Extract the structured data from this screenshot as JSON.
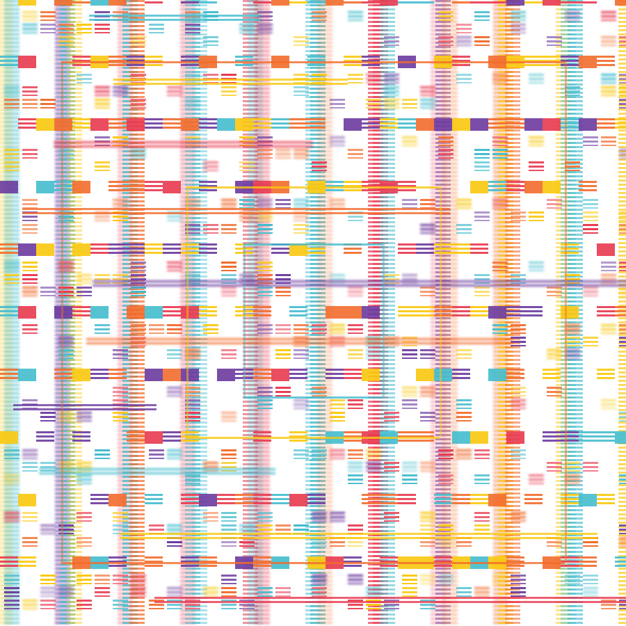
{
  "palette": {
    "purple": "#6b3a9e",
    "red": "#e8384f",
    "orange": "#f26b2b",
    "yellow": "#f9c80e",
    "cyan": "#43bccd"
  }
}
